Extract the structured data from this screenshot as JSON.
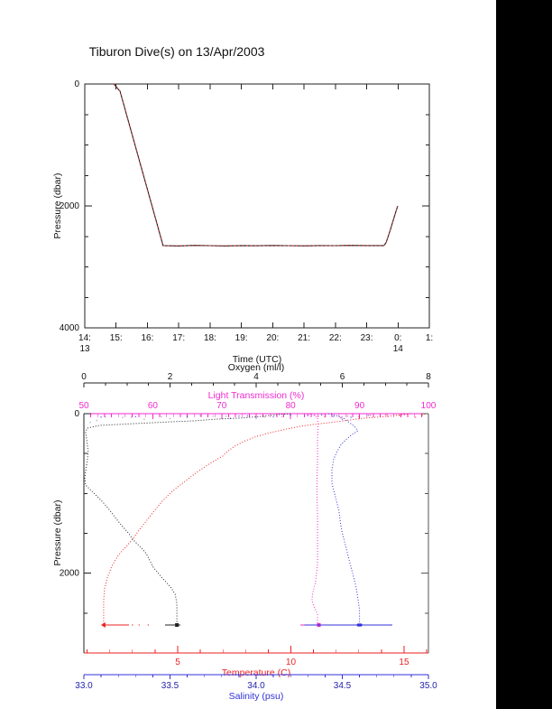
{
  "title": "Tiburon Dive(s) on 13/Apr/2003",
  "page": {
    "background": "#ffffff",
    "stripe": {
      "color": "#000000",
      "x": 550,
      "width": 62
    }
  },
  "colors": {
    "frame": "#222222",
    "trace_black": "#1a1a1a",
    "trace_red": "#d03038",
    "oxygen": "#222222",
    "light": "#f02ad0",
    "temperature": "#ee2222",
    "salinity": "#3232d8",
    "salinity_labels": "#2222aa",
    "noise_gray": "#8a8a9a"
  },
  "chart_data": [
    {
      "type": "line",
      "title": "Tiburon Dive(s) on 13/Apr/2003",
      "xlabel": "Time (UTC)",
      "ylabel": "Pressure (dbar)",
      "xlim": [
        14,
        25
      ],
      "ylim": [
        0,
        4000
      ],
      "y_axis_reversed": true,
      "grid": false,
      "yticks": {
        "majors": [
          0,
          2000,
          4000
        ],
        "minor_step": 500
      },
      "xticks": [
        {
          "t": 14,
          "label": "14:",
          "sub": "13"
        },
        {
          "t": 15,
          "label": "15:"
        },
        {
          "t": 16,
          "label": "16:"
        },
        {
          "t": 17,
          "label": "17:"
        },
        {
          "t": 18,
          "label": "18:"
        },
        {
          "t": 19,
          "label": "19:"
        },
        {
          "t": 20,
          "label": "20:"
        },
        {
          "t": 21,
          "label": "21:"
        },
        {
          "t": 22,
          "label": "22:"
        },
        {
          "t": 23,
          "label": "23:"
        },
        {
          "t": 24,
          "label": "0:",
          "sub": "14"
        },
        {
          "t": 25,
          "label": "1:"
        }
      ],
      "series": [
        {
          "name": "dive-pressure-vs-time",
          "points": [
            [
              14.92,
              0
            ],
            [
              14.98,
              30
            ],
            [
              15.03,
              60
            ],
            [
              15.08,
              95
            ],
            [
              15.12,
              110
            ],
            [
              16.5,
              2650
            ],
            [
              17.0,
              2656
            ],
            [
              17.5,
              2648
            ],
            [
              18.0,
              2652
            ],
            [
              18.5,
              2656
            ],
            [
              19.0,
              2650
            ],
            [
              19.5,
              2654
            ],
            [
              20.0,
              2649
            ],
            [
              20.5,
              2652
            ],
            [
              21.0,
              2655
            ],
            [
              21.5,
              2650
            ],
            [
              22.0,
              2652
            ],
            [
              22.5,
              2648
            ],
            [
              23.0,
              2651
            ],
            [
              23.3,
              2650
            ],
            [
              23.55,
              2650
            ],
            [
              23.62,
              2600
            ],
            [
              23.75,
              2400
            ],
            [
              23.88,
              2180
            ],
            [
              23.99,
              2000
            ]
          ]
        }
      ]
    },
    {
      "type": "scatter",
      "ylabel": "Pressure (dbar)",
      "ylim": [
        0,
        3000
      ],
      "y_axis_reversed": true,
      "grid": false,
      "yticks": {
        "majors": [
          0,
          2000
        ],
        "minor_step": 500
      },
      "axes": [
        {
          "id": "oxygen",
          "label": "Oxygen (ml/l)",
          "lim": [
            0,
            8
          ],
          "ticks": [
            0,
            2,
            4,
            6,
            8
          ],
          "tick_labels": [
            "0",
            "2",
            "4",
            "6",
            "8"
          ],
          "minor_step": 0.5,
          "position": "top-outer"
        },
        {
          "id": "light",
          "label": "Light Transmission (%)",
          "lim": [
            50,
            100
          ],
          "ticks": [
            50,
            60,
            70,
            80,
            90,
            100
          ],
          "tick_labels": [
            "50",
            "60",
            "70",
            "80",
            "90",
            "100"
          ],
          "minor_step": 1,
          "position": "top-frame"
        },
        {
          "id": "temp",
          "label": "Temperature (C)",
          "lim": [
            0.857,
            16.076
          ],
          "ticks": [
            5,
            10,
            15
          ],
          "tick_labels": [
            "5",
            "10",
            "15"
          ],
          "minor_step": 1,
          "position": "bottom-frame"
        },
        {
          "id": "sal",
          "label": "Salinity (psu)",
          "lim": [
            33.0,
            35.0
          ],
          "ticks": [
            33.0,
            33.5,
            34.0,
            34.5,
            35.0
          ],
          "tick_labels": [
            "33.0",
            "33.5",
            "34.0",
            "34.5",
            "35.0"
          ],
          "minor_step": 0.1,
          "position": "bottom-outer"
        }
      ],
      "series": [
        {
          "name": "oxygen-profile",
          "axis": "oxygen",
          "profile": [
            [
              4.8,
              0
            ],
            [
              4.54,
              11
            ],
            [
              4.13,
              34
            ],
            [
              3.6,
              57
            ],
            [
              3.08,
              68
            ],
            [
              2.55,
              91
            ],
            [
              2.03,
              102
            ],
            [
              1.61,
              113
            ],
            [
              1.19,
              125
            ],
            [
              0.77,
              136
            ],
            [
              0.36,
              147
            ],
            [
              0.08,
              181
            ],
            [
              0.04,
              226
            ],
            [
              0.06,
              306
            ],
            [
              0.08,
              385
            ],
            [
              0.1,
              475
            ],
            [
              0.08,
              589
            ],
            [
              0.04,
              724
            ],
            [
              0.02,
              815
            ],
            [
              0.04,
              894
            ],
            [
              0.21,
              985
            ],
            [
              0.42,
              1098
            ],
            [
              0.57,
              1189
            ],
            [
              0.71,
              1291
            ],
            [
              0.88,
              1404
            ],
            [
              1.03,
              1494
            ],
            [
              1.15,
              1585
            ],
            [
              1.34,
              1687
            ],
            [
              1.45,
              1755
            ],
            [
              1.61,
              1924
            ],
            [
              1.82,
              2060
            ],
            [
              2.01,
              2173
            ],
            [
              2.12,
              2264
            ],
            [
              2.16,
              2377
            ],
            [
              2.16,
              2513
            ],
            [
              2.16,
              2649
            ]
          ],
          "bottom_pressure": 2649,
          "bottom_segment": [
            1.88,
            2.24
          ],
          "marker": "square",
          "marker_at": 2.16,
          "noise": [
            [
              0.5,
              40
            ],
            [
              1.1,
              45
            ],
            [
              1.8,
              35
            ],
            [
              2.4,
              50
            ],
            [
              3.0,
              30
            ],
            [
              3.6,
              55
            ],
            [
              4.2,
              42
            ],
            [
              4.6,
              38
            ],
            [
              2.0,
              60
            ],
            [
              1.4,
              70
            ],
            [
              2.7,
              25
            ],
            [
              0.9,
              48
            ],
            [
              3.3,
              33
            ],
            [
              0.3,
              85
            ],
            [
              0.15,
              110
            ]
          ]
        },
        {
          "name": "light-transmission-profile",
          "axis": "light",
          "profile": [
            [
              83.0,
              0
            ],
            [
              83.9,
              45
            ],
            [
              84.0,
              136
            ],
            [
              83.9,
              306
            ],
            [
              83.9,
              589
            ],
            [
              83.8,
              928
            ],
            [
              83.9,
              1268
            ],
            [
              83.9,
              1608
            ],
            [
              83.9,
              1891
            ],
            [
              83.6,
              2117
            ],
            [
              83.2,
              2253
            ],
            [
              83.1,
              2343
            ],
            [
              83.4,
              2422
            ],
            [
              83.9,
              2513
            ],
            [
              83.9,
              2649
            ]
          ],
          "bottom_pressure": 2649,
          "bottom_segment": [
            81.4,
            84.6
          ],
          "marker": "square",
          "marker_at": 84.1,
          "noise": [
            [
              82.5,
              10
            ],
            [
              83.5,
              20
            ],
            [
              83.0,
              5
            ],
            [
              84.0,
              30
            ],
            [
              82.8,
              2
            ]
          ]
        },
        {
          "name": "temperature-profile",
          "axis": "temp",
          "profile": [
            [
              15.28,
              0
            ],
            [
              14.28,
              34
            ],
            [
              13.21,
              57
            ],
            [
              12.01,
              102
            ],
            [
              10.98,
              136
            ],
            [
              10.42,
              158
            ],
            [
              9.82,
              192
            ],
            [
              9.1,
              238
            ],
            [
              8.51,
              283
            ],
            [
              7.99,
              340
            ],
            [
              7.51,
              408
            ],
            [
              7.19,
              475
            ],
            [
              6.99,
              532
            ],
            [
              6.43,
              623
            ],
            [
              5.84,
              736
            ],
            [
              5.32,
              849
            ],
            [
              4.8,
              962
            ],
            [
              4.32,
              1098
            ],
            [
              3.92,
              1234
            ],
            [
              3.61,
              1347
            ],
            [
              3.29,
              1460
            ],
            [
              3.01,
              1574
            ],
            [
              2.73,
              1664
            ],
            [
              2.37,
              1777
            ],
            [
              2.09,
              1913
            ],
            [
              1.89,
              2060
            ],
            [
              1.77,
              2196
            ],
            [
              1.73,
              2343
            ],
            [
              1.73,
              2649
            ]
          ],
          "bottom_pressure": 2649,
          "bottom_segment": [
            1.73,
            2.85
          ],
          "marker": "triangle",
          "marker_at": 1.73,
          "bottom_dots": [
            3.0,
            3.3,
            3.7
          ],
          "noise": [
            [
              13.5,
              20
            ],
            [
              12.5,
              30
            ],
            [
              14.2,
              15
            ],
            [
              11.5,
              40
            ],
            [
              14.8,
              25
            ],
            [
              13.0,
              35
            ],
            [
              15.0,
              10
            ],
            [
              12.2,
              50
            ],
            [
              15.5,
              45
            ],
            [
              15.8,
              18
            ],
            [
              15.9,
              5
            ]
          ]
        },
        {
          "name": "salinity-profile",
          "axis": "sal",
          "profile": [
            [
              34.42,
              0
            ],
            [
              34.5,
              45
            ],
            [
              34.57,
              158
            ],
            [
              34.59,
              215
            ],
            [
              34.55,
              272
            ],
            [
              34.52,
              328
            ],
            [
              34.49,
              396
            ],
            [
              34.47,
              475
            ],
            [
              34.45,
              566
            ],
            [
              34.44,
              702
            ],
            [
              34.44,
              872
            ],
            [
              34.46,
              1041
            ],
            [
              34.48,
              1211
            ],
            [
              34.49,
              1381
            ],
            [
              34.5,
              1494
            ],
            [
              34.52,
              1664
            ],
            [
              34.54,
              1834
            ],
            [
              34.56,
              2003
            ],
            [
              34.58,
              2173
            ],
            [
              34.59,
              2309
            ],
            [
              34.6,
              2456
            ],
            [
              34.6,
              2649
            ]
          ],
          "bottom_pressure": 2649,
          "bottom_segment": [
            34.28,
            34.79
          ],
          "marker": "blob",
          "marker_at": 34.6,
          "noise": [
            [
              33.9,
              30
            ],
            [
              34.1,
              40
            ],
            [
              34.3,
              25
            ],
            [
              34.0,
              55
            ],
            [
              34.45,
              35
            ],
            [
              34.2,
              20
            ],
            [
              33.85,
              60
            ],
            [
              34.55,
              45
            ],
            [
              34.38,
              15
            ],
            [
              34.5,
              70
            ],
            [
              33.95,
              28
            ],
            [
              34.65,
              22
            ],
            [
              33.6,
              33
            ],
            [
              33.3,
              38
            ],
            [
              33.1,
              42
            ]
          ]
        }
      ]
    }
  ]
}
